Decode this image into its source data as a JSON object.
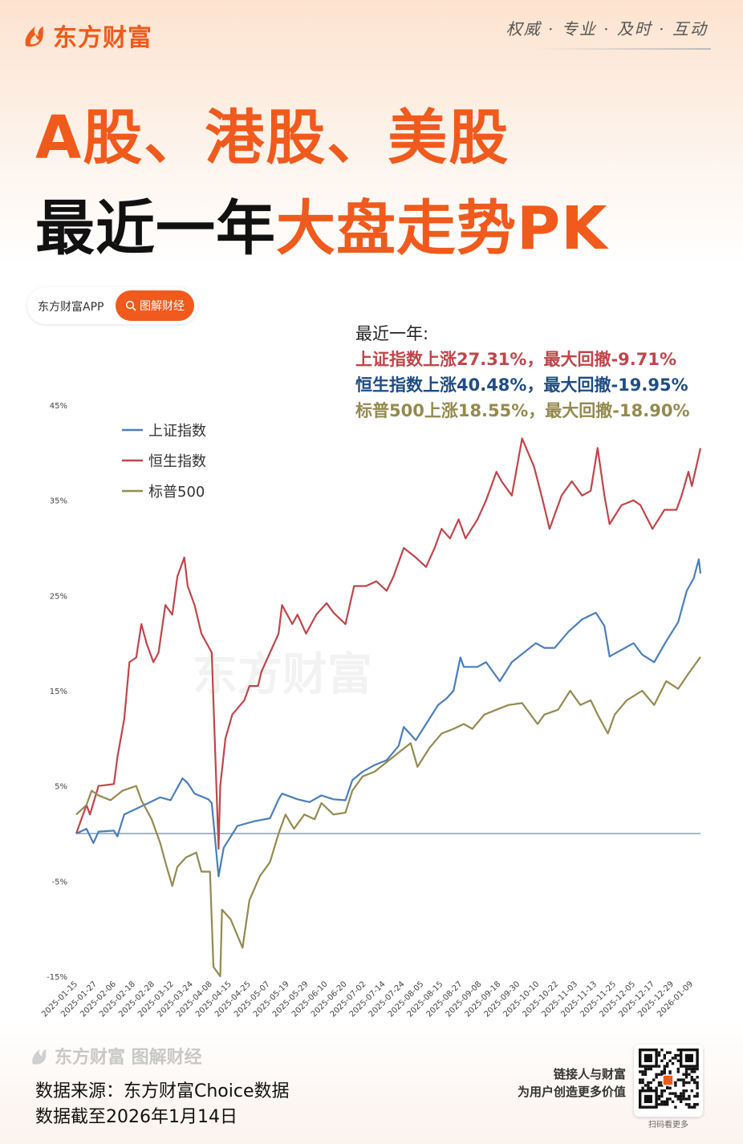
{
  "header": {
    "brand": "东方财富",
    "slogan": "权威 · 专业 · 及时 · 互动"
  },
  "title": {
    "line1": "A股、港股、美股",
    "line2_part1": "最近一年",
    "line2_part2": "大盘走势PK"
  },
  "app_pill": {
    "app_name": "东方财富APP",
    "button_label": "图解财经"
  },
  "summary": {
    "heading": "最近一年:",
    "lines": [
      "上证指数上涨27.31%，最大回撤-9.71%",
      "恒生指数上涨40.48%，最大回撤-19.95%",
      "标普500上涨18.55%，最大回撤-18.90%"
    ]
  },
  "watermark": "东方财富",
  "footer": {
    "brand": "东方财富 图解财经",
    "source": "数据来源：东方财富Choice数据",
    "cutoff": "数据截至2026年1月14日",
    "tagline1": "链接人与财富",
    "tagline2": "为用户创造更多价值",
    "qr_label": "扫码看更多"
  },
  "colors": {
    "accent": "#f05a1c",
    "sse": "#4a7ebb",
    "hsi": "#c0454a",
    "spx": "#948a4f"
  },
  "chart_data": {
    "type": "line",
    "ylim": [
      -15,
      45
    ],
    "y_ticks": [
      -15,
      -5,
      5,
      15,
      25,
      35,
      45
    ],
    "y_tick_labels": [
      "-15%",
      "-5%",
      "5%",
      "15%",
      "25%",
      "35%",
      "45%"
    ],
    "x_range": [
      "2025-01-14",
      "2026-01-13"
    ],
    "x_tick_labels": [
      "2025-01-15",
      "2025-01-27",
      "2025-02-06",
      "2025-02-18",
      "2025-02-28",
      "2025-03-12",
      "2025-03-24",
      "2025-04-08",
      "2025-04-15",
      "2025-04-25",
      "2025-05-07",
      "2025-05-19",
      "2025-05-29",
      "2025-06-10",
      "2025-06-20",
      "2025-07-02",
      "2025-07-14",
      "2025-07-24",
      "2025-08-05",
      "2025-08-15",
      "2025-08-27",
      "2025-09-08",
      "2025-09-18",
      "2025-09-30",
      "2025-10-10",
      "2025-10-22",
      "2025-11-03",
      "2025-11-13",
      "2025-11-25",
      "2025-12-05",
      "2025-12-17",
      "2025-12-29",
      "2026-01-09"
    ],
    "legend_position": "top-left",
    "series": [
      {
        "name": "上证指数",
        "color": "#4a7ebb",
        "points": [
          [
            "2025-01-14",
            0
          ],
          [
            "2025-01-20",
            0.5
          ],
          [
            "2025-01-24",
            -1
          ],
          [
            "2025-01-27",
            0.2
          ],
          [
            "2025-02-05",
            0.3
          ],
          [
            "2025-02-07",
            -0.3
          ],
          [
            "2025-02-11",
            2
          ],
          [
            "2025-02-18",
            2.6
          ],
          [
            "2025-02-25",
            3.2
          ],
          [
            "2025-03-04",
            3.8
          ],
          [
            "2025-03-10",
            3.5
          ],
          [
            "2025-03-17",
            5.8
          ],
          [
            "2025-03-20",
            5.3
          ],
          [
            "2025-03-24",
            4.2
          ],
          [
            "2025-04-01",
            3.6
          ],
          [
            "2025-04-03",
            3.2
          ],
          [
            "2025-04-07",
            -4.5
          ],
          [
            "2025-04-10",
            -1.5
          ],
          [
            "2025-04-18",
            0.8
          ],
          [
            "2025-04-28",
            1.3
          ],
          [
            "2025-05-07",
            1.6
          ],
          [
            "2025-05-12",
            3.6
          ],
          [
            "2025-05-14",
            4.2
          ],
          [
            "2025-05-23",
            3.6
          ],
          [
            "2025-05-30",
            3.3
          ],
          [
            "2025-06-06",
            4
          ],
          [
            "2025-06-13",
            3.6
          ],
          [
            "2025-06-20",
            3.5
          ],
          [
            "2025-06-24",
            5.6
          ],
          [
            "2025-06-30",
            6.5
          ],
          [
            "2025-07-07",
            7.2
          ],
          [
            "2025-07-14",
            7.7
          ],
          [
            "2025-07-21",
            9.2
          ],
          [
            "2025-07-24",
            11.2
          ],
          [
            "2025-07-31",
            9.8
          ],
          [
            "2025-08-06",
            11.5
          ],
          [
            "2025-08-13",
            13.5
          ],
          [
            "2025-08-18",
            14.2
          ],
          [
            "2025-08-22",
            15
          ],
          [
            "2025-08-26",
            18.5
          ],
          [
            "2025-08-28",
            17.5
          ],
          [
            "2025-09-05",
            17.5
          ],
          [
            "2025-09-10",
            18
          ],
          [
            "2025-09-18",
            16
          ],
          [
            "2025-09-25",
            18
          ],
          [
            "2025-10-09",
            20
          ],
          [
            "2025-10-14",
            19.5
          ],
          [
            "2025-10-20",
            19.5
          ],
          [
            "2025-10-28",
            21.2
          ],
          [
            "2025-11-05",
            22.5
          ],
          [
            "2025-11-13",
            23.2
          ],
          [
            "2025-11-18",
            21.8
          ],
          [
            "2025-11-21",
            18.6
          ],
          [
            "2025-11-27",
            19.2
          ],
          [
            "2025-12-05",
            20
          ],
          [
            "2025-12-10",
            18.8
          ],
          [
            "2025-12-17",
            18
          ],
          [
            "2025-12-24",
            20.2
          ],
          [
            "2025-12-31",
            22.2
          ],
          [
            "2026-01-05",
            25.5
          ],
          [
            "2026-01-09",
            26.8
          ],
          [
            "2026-01-12",
            28.8
          ],
          [
            "2026-01-13",
            27.31
          ]
        ]
      },
      {
        "name": "恒生指数",
        "color": "#c0454a",
        "points": [
          [
            "2025-01-14",
            0
          ],
          [
            "2025-01-20",
            3
          ],
          [
            "2025-01-22",
            2
          ],
          [
            "2025-01-27",
            5
          ],
          [
            "2025-02-05",
            5.2
          ],
          [
            "2025-02-07",
            8
          ],
          [
            "2025-02-11",
            12
          ],
          [
            "2025-02-14",
            18
          ],
          [
            "2025-02-18",
            18.5
          ],
          [
            "2025-02-21",
            22
          ],
          [
            "2025-02-24",
            20
          ],
          [
            "2025-02-28",
            18
          ],
          [
            "2025-03-03",
            19
          ],
          [
            "2025-03-07",
            24
          ],
          [
            "2025-03-11",
            23
          ],
          [
            "2025-03-14",
            27
          ],
          [
            "2025-03-18",
            29
          ],
          [
            "2025-03-20",
            26
          ],
          [
            "2025-03-24",
            24
          ],
          [
            "2025-03-28",
            21
          ],
          [
            "2025-04-03",
            19
          ],
          [
            "2025-04-07",
            -1.6
          ],
          [
            "2025-04-08",
            5
          ],
          [
            "2025-04-11",
            10
          ],
          [
            "2025-04-15",
            12.5
          ],
          [
            "2025-04-22",
            14
          ],
          [
            "2025-04-25",
            15.5
          ],
          [
            "2025-04-30",
            15.5
          ],
          [
            "2025-05-02",
            17
          ],
          [
            "2025-05-07",
            19
          ],
          [
            "2025-05-12",
            21
          ],
          [
            "2025-05-14",
            24
          ],
          [
            "2025-05-20",
            22
          ],
          [
            "2025-05-23",
            23
          ],
          [
            "2025-05-28",
            21
          ],
          [
            "2025-06-03",
            23
          ],
          [
            "2025-06-09",
            24.2
          ],
          [
            "2025-06-13",
            23.2
          ],
          [
            "2025-06-20",
            22
          ],
          [
            "2025-06-25",
            26
          ],
          [
            "2025-07-02",
            26
          ],
          [
            "2025-07-08",
            26.5
          ],
          [
            "2025-07-14",
            25.5
          ],
          [
            "2025-07-18",
            27
          ],
          [
            "2025-07-24",
            30
          ],
          [
            "2025-07-31",
            29
          ],
          [
            "2025-08-06",
            28
          ],
          [
            "2025-08-11",
            30
          ],
          [
            "2025-08-15",
            32
          ],
          [
            "2025-08-20",
            31
          ],
          [
            "2025-08-25",
            33
          ],
          [
            "2025-08-29",
            31
          ],
          [
            "2025-09-05",
            33
          ],
          [
            "2025-09-10",
            35
          ],
          [
            "2025-09-16",
            38
          ],
          [
            "2025-09-19",
            37
          ],
          [
            "2025-09-25",
            35.5
          ],
          [
            "2025-10-01",
            41.5
          ],
          [
            "2025-10-08",
            38.5
          ],
          [
            "2025-10-13",
            35
          ],
          [
            "2025-10-17",
            32
          ],
          [
            "2025-10-24",
            35.5
          ],
          [
            "2025-10-30",
            37
          ],
          [
            "2025-11-05",
            35.5
          ],
          [
            "2025-11-10",
            36
          ],
          [
            "2025-11-14",
            40.5
          ],
          [
            "2025-11-18",
            35.5
          ],
          [
            "2025-11-21",
            32.5
          ],
          [
            "2025-11-28",
            34.5
          ],
          [
            "2025-12-05",
            35
          ],
          [
            "2025-12-09",
            34.5
          ],
          [
            "2025-12-16",
            32
          ],
          [
            "2025-12-23",
            34
          ],
          [
            "2025-12-30",
            34
          ],
          [
            "2026-01-02",
            35.5
          ],
          [
            "2026-01-06",
            38
          ],
          [
            "2026-01-08",
            36.5
          ],
          [
            "2026-01-13",
            40.48
          ]
        ]
      },
      {
        "name": "标普500",
        "color": "#948a4f",
        "points": [
          [
            "2025-01-14",
            2
          ],
          [
            "2025-01-20",
            3
          ],
          [
            "2025-01-23",
            4.5
          ],
          [
            "2025-01-27",
            4
          ],
          [
            "2025-02-03",
            3.5
          ],
          [
            "2025-02-10",
            4.5
          ],
          [
            "2025-02-18",
            5
          ],
          [
            "2025-02-21",
            3.5
          ],
          [
            "2025-02-27",
            1.5
          ],
          [
            "2025-03-04",
            -1
          ],
          [
            "2025-03-07",
            -3
          ],
          [
            "2025-03-11",
            -5.5
          ],
          [
            "2025-03-14",
            -3.5
          ],
          [
            "2025-03-19",
            -2.5
          ],
          [
            "2025-03-25",
            -2
          ],
          [
            "2025-03-28",
            -4
          ],
          [
            "2025-04-02",
            -4
          ],
          [
            "2025-04-04",
            -14
          ],
          [
            "2025-04-08",
            -15
          ],
          [
            "2025-04-09",
            -8
          ],
          [
            "2025-04-14",
            -9
          ],
          [
            "2025-04-21",
            -12
          ],
          [
            "2025-04-25",
            -7
          ],
          [
            "2025-05-01",
            -4.5
          ],
          [
            "2025-05-07",
            -3
          ],
          [
            "2025-05-12",
            0
          ],
          [
            "2025-05-16",
            2
          ],
          [
            "2025-05-21",
            0.5
          ],
          [
            "2025-05-27",
            2
          ],
          [
            "2025-06-02",
            1.5
          ],
          [
            "2025-06-06",
            3.2
          ],
          [
            "2025-06-13",
            2
          ],
          [
            "2025-06-20",
            2.2
          ],
          [
            "2025-06-24",
            4.5
          ],
          [
            "2025-06-30",
            6
          ],
          [
            "2025-07-07",
            6.5
          ],
          [
            "2025-07-14",
            7.5
          ],
          [
            "2025-07-21",
            8.5
          ],
          [
            "2025-07-28",
            9.5
          ],
          [
            "2025-08-01",
            7
          ],
          [
            "2025-08-08",
            9
          ],
          [
            "2025-08-15",
            10.5
          ],
          [
            "2025-08-22",
            11
          ],
          [
            "2025-08-28",
            11.5
          ],
          [
            "2025-09-02",
            11
          ],
          [
            "2025-09-09",
            12.5
          ],
          [
            "2025-09-16",
            13
          ],
          [
            "2025-09-23",
            13.5
          ],
          [
            "2025-10-01",
            13.7
          ],
          [
            "2025-10-10",
            11.5
          ],
          [
            "2025-10-14",
            12.5
          ],
          [
            "2025-10-22",
            13
          ],
          [
            "2025-10-29",
            15
          ],
          [
            "2025-11-04",
            13.5
          ],
          [
            "2025-11-10",
            14
          ],
          [
            "2025-11-14",
            12.5
          ],
          [
            "2025-11-20",
            10.5
          ],
          [
            "2025-11-24",
            12.5
          ],
          [
            "2025-12-01",
            14
          ],
          [
            "2025-12-10",
            15
          ],
          [
            "2025-12-17",
            13.5
          ],
          [
            "2025-12-24",
            16
          ],
          [
            "2025-12-31",
            15.2
          ],
          [
            "2026-01-06",
            16.8
          ],
          [
            "2026-01-12",
            18.3
          ],
          [
            "2026-01-13",
            18.55
          ]
        ]
      }
    ]
  }
}
